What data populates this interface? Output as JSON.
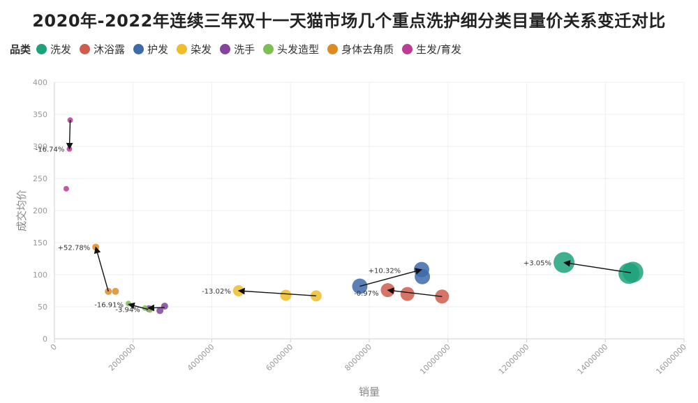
{
  "title": "2020年-2022年连续三年双十一天猫市场几个重点洗护细分类目量价关系变迁对比",
  "legend": {
    "title": "品类",
    "items": [
      {
        "label": "洗发",
        "color": "#1fa27b"
      },
      {
        "label": "沐浴露",
        "color": "#cf5d4c"
      },
      {
        "label": "护发",
        "color": "#3d6aa9"
      },
      {
        "label": "染发",
        "color": "#eebd2c"
      },
      {
        "label": "洗手",
        "color": "#84439c"
      },
      {
        "label": "头发造型",
        "color": "#7fbd55"
      },
      {
        "label": "身体去角质",
        "color": "#de8a23"
      },
      {
        "label": "生发/育发",
        "color": "#bd3a96"
      }
    ]
  },
  "chart_data": {
    "type": "scatter",
    "xlabel": "销量",
    "ylabel": "成交均价",
    "xlim": [
      0,
      16000000
    ],
    "ylim": [
      0,
      400
    ],
    "xticks": [
      "0",
      "2000000",
      "4000000",
      "6000000",
      "8000000",
      "10000000",
      "12000000",
      "14000000",
      "16000000"
    ],
    "yticks": [
      "0",
      "50",
      "100",
      "150",
      "200",
      "250",
      "300",
      "350",
      "400"
    ],
    "grid": true,
    "series": [
      {
        "name": "洗发",
        "color": "#1fa27b",
        "size": 15,
        "points": [
          [
            14700000,
            104
          ],
          [
            14600000,
            102
          ],
          [
            12950000,
            119
          ]
        ],
        "arrow": {
          "from": [
            14650000,
            103
          ],
          "to": [
            12950000,
            119
          ]
        },
        "change": "+3.05%",
        "label_at": [
          12950000,
          119
        ]
      },
      {
        "name": "沐浴露",
        "color": "#cf5d4c",
        "size": 10,
        "points": [
          [
            9850000,
            66
          ],
          [
            8970000,
            70
          ],
          [
            8470000,
            76
          ]
        ],
        "arrow": {
          "from": [
            9850000,
            66
          ],
          "to": [
            8470000,
            76
          ]
        },
        "change": "-0.97%",
        "label_at": [
          8470000,
          72
        ]
      },
      {
        "name": "护发",
        "color": "#3d6aa9",
        "size": 11,
        "points": [
          [
            7760000,
            82
          ],
          [
            9330000,
            108
          ],
          [
            9350000,
            97
          ]
        ],
        "arrow": {
          "from": [
            7760000,
            82
          ],
          "to": [
            9330000,
            108
          ]
        },
        "change": "+10.32%",
        "label_at": [
          9050000,
          107
        ]
      },
      {
        "name": "染发",
        "color": "#eebd2c",
        "size": 8,
        "points": [
          [
            6650000,
            67
          ],
          [
            5880000,
            68
          ],
          [
            4680000,
            75
          ]
        ],
        "arrow": {
          "from": [
            6650000,
            67
          ],
          "to": [
            4680000,
            75
          ]
        },
        "change": "-13.02%",
        "label_at": [
          4680000,
          75
        ]
      },
      {
        "name": "洗手",
        "color": "#84439c",
        "size": 5,
        "points": [
          [
            2800000,
            51
          ],
          [
            2680000,
            44
          ],
          [
            2400000,
            47
          ]
        ],
        "arrow": {
          "from": [
            2800000,
            49
          ],
          "to": [
            2380000,
            48
          ]
        },
        "change": "-3.94%",
        "label_at": [
          2320000,
          46
        ]
      },
      {
        "name": "头发造型",
        "color": "#7fbd55",
        "size": 4,
        "points": [
          [
            2430000,
            45
          ],
          [
            2300000,
            48
          ],
          [
            1880000,
            55
          ]
        ],
        "arrow": {
          "from": [
            2380000,
            46
          ],
          "to": [
            1880000,
            54
          ]
        },
        "change": "-16.91%",
        "label_at": [
          1880000,
          54
        ]
      },
      {
        "name": "身体去角质",
        "color": "#de8a23",
        "size": 5,
        "points": [
          [
            1550000,
            74
          ],
          [
            1370000,
            74
          ],
          [
            1050000,
            143
          ]
        ],
        "arrow": {
          "from": [
            1370000,
            74
          ],
          "to": [
            1050000,
            143
          ]
        },
        "change": "+52.78%",
        "label_at": [
          1050000,
          143
        ]
      },
      {
        "name": "生发/育发",
        "color": "#bd3a96",
        "size": 4,
        "points": [
          [
            300000,
            234
          ],
          [
            400000,
            341
          ],
          [
            380000,
            296
          ]
        ],
        "arrow": {
          "from": [
            400000,
            341
          ],
          "to": [
            380000,
            296
          ]
        },
        "change": "-16.74%",
        "label_at": [
          380000,
          296
        ]
      }
    ]
  }
}
